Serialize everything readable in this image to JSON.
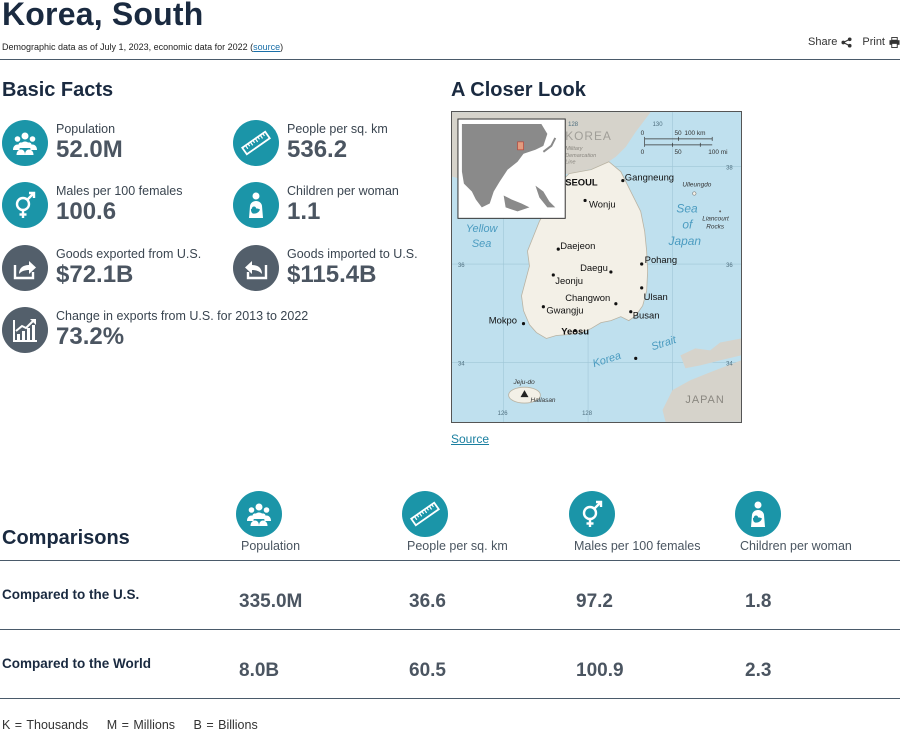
{
  "header": {
    "title": "Korea, South",
    "subtitle_prefix": "Demographic data as of July 1, 2023, economic data for 2022 (",
    "subtitle_link": "source",
    "subtitle_suffix": ")",
    "share_label": "Share",
    "print_label": "Print"
  },
  "basic_facts": {
    "heading": "Basic Facts",
    "items": [
      {
        "label": "Population",
        "value": "52.0M",
        "icon": "population-icon"
      },
      {
        "label": "People per sq. km",
        "value": "536.2",
        "icon": "ruler-icon"
      },
      {
        "label": "Males per 100 females",
        "value": "100.6",
        "icon": "gender-icon"
      },
      {
        "label": "Children per woman",
        "value": "1.1",
        "icon": "mother-child-icon"
      },
      {
        "label": "Goods exported from U.S.",
        "value": "$72.1B",
        "icon": "export-icon"
      },
      {
        "label": "Goods imported to U.S.",
        "value": "$115.4B",
        "icon": "import-icon"
      },
      {
        "label": "Change in exports from U.S. for 2013 to 2022",
        "value": "73.2%",
        "icon": "growth-chart-icon"
      }
    ]
  },
  "closer_look": {
    "heading": "A Closer Look",
    "source_label": "Source",
    "map": {
      "country_labels": [
        "KOREA",
        "JAPAN"
      ],
      "sea_labels": [
        "Yellow",
        "Sea",
        "Sea",
        "of",
        "Japan",
        "Korea",
        "Strait"
      ],
      "cities": [
        "Gangneung",
        "SEOUL",
        "Wonju",
        "Daejeon",
        "Daegu",
        "Pohang",
        "Jeonju",
        "Changwon",
        "Ulsan",
        "Gwangju",
        "Busan",
        "Mokpo",
        "Yeosu"
      ],
      "islands": [
        "Ulleungdo",
        "Liancourt",
        "Rocks",
        "Jeju-do",
        "Hallasan"
      ],
      "other_labels": [
        "Military",
        "Demarcation",
        "Line"
      ],
      "scale": {
        "km_ticks": [
          "0",
          "50",
          "100 km"
        ],
        "mi_ticks": [
          "0",
          "50",
          "100 mi"
        ]
      },
      "grid": {
        "lon": [
          "126",
          "128",
          "130"
        ],
        "lat": [
          "38",
          "36",
          "34"
        ]
      }
    }
  },
  "comparisons": {
    "heading": "Comparisons",
    "columns": [
      {
        "label": "Population",
        "icon": "population-icon"
      },
      {
        "label": "People per sq. km",
        "icon": "ruler-icon"
      },
      {
        "label": "Males per 100 females",
        "icon": "gender-icon"
      },
      {
        "label": "Children per woman",
        "icon": "mother-child-icon"
      }
    ],
    "rows": [
      {
        "label": "Compared to the U.S.",
        "values": [
          "335.0M",
          "36.6",
          "97.2",
          "1.8"
        ]
      },
      {
        "label": "Compared to the World",
        "values": [
          "8.0B",
          "60.5",
          "100.9",
          "2.3"
        ]
      }
    ]
  },
  "legend": [
    "K = Thousands",
    "M = Millions",
    "B = Billions"
  ],
  "colors": {
    "teal": "#1b95a8",
    "slate": "#535f6b",
    "navy": "#1a2a40",
    "sea": "#bfe0ee",
    "land": "#f3f0e7"
  }
}
